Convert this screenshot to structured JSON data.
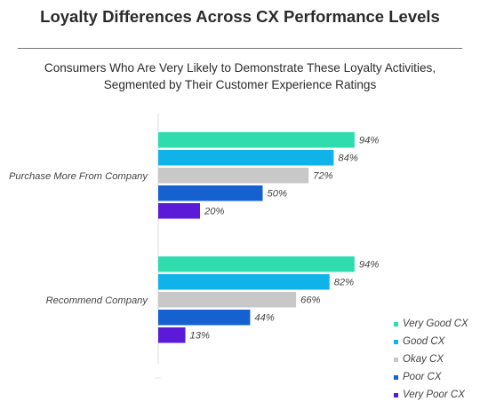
{
  "colors": {
    "very_good": "#2fdcae",
    "good": "#10b2ea",
    "okay": "#c8c8c8",
    "poor": "#1461cf",
    "very_poor": "#5a1ad8"
  },
  "chart_data": {
    "type": "bar",
    "orientation": "horizontal",
    "title": "Loyalty Differences Across CX Performance Levels",
    "subtitle_lines": [
      "Consumers Who Are Very Likely to Demonstrate These Loyalty Activities,",
      "Segmented by Their Customer Experience Ratings"
    ],
    "categories": [
      "Purchase More From Company",
      "Recommend Company"
    ],
    "series": [
      {
        "name": "Very Good CX",
        "color_key": "very_good",
        "values": [
          94,
          94
        ],
        "labels": [
          "94%",
          "94%"
        ]
      },
      {
        "name": "Good CX",
        "color_key": "good",
        "values": [
          84,
          82
        ],
        "labels": [
          "84%",
          "82%"
        ]
      },
      {
        "name": "Okay CX",
        "color_key": "okay",
        "values": [
          72,
          66
        ],
        "labels": [
          "72%",
          "66%"
        ]
      },
      {
        "name": "Poor CX",
        "color_key": "poor",
        "values": [
          50,
          44
        ],
        "labels": [
          "50%",
          "44%"
        ]
      },
      {
        "name": "Very Poor CX",
        "color_key": "very_poor",
        "values": [
          20,
          13
        ],
        "labels": [
          "20%",
          "13%"
        ]
      }
    ],
    "xlim": [
      0,
      100
    ],
    "grid": false,
    "legend_position": "bottom-right"
  }
}
